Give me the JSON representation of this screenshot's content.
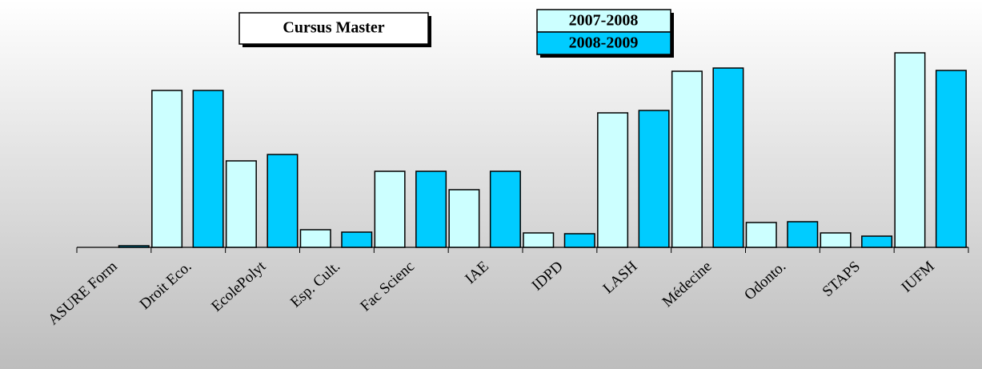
{
  "chart_data": {
    "type": "bar",
    "title": "Cursus Master",
    "categories": [
      "ASURE Form",
      "Droit Eco.",
      "EcolePolyt",
      "Esp. Cult.",
      "Fac Scienc",
      "IAE",
      "IDPD",
      "LASH",
      "Médecine",
      "Odonto.",
      "STAPS",
      "IUFM"
    ],
    "series": [
      {
        "name": "2007-2008",
        "color": "#ccffff",
        "values": [
          0,
          196,
          108,
          22,
          95,
          72,
          18,
          168,
          220,
          31,
          18,
          243
        ]
      },
      {
        "name": "2008-2009",
        "color": "#00ccff",
        "values": [
          2,
          196,
          116,
          19,
          95,
          95,
          17,
          171,
          224,
          32,
          14,
          221
        ]
      }
    ],
    "ylim": [
      0,
      250
    ]
  }
}
